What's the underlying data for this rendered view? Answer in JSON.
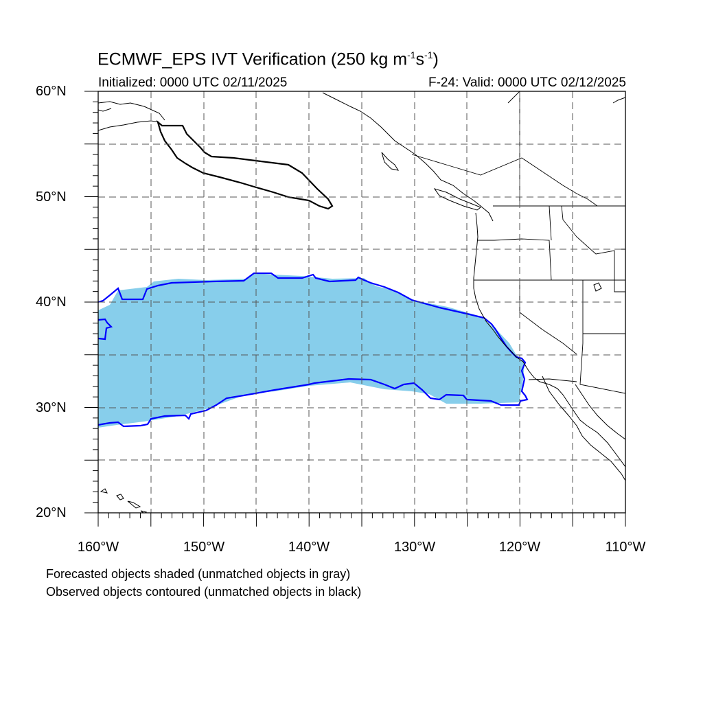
{
  "title": {
    "main": "ECMWF_EPS IVT Verification (250 kg m",
    "sup1": "-1",
    "mid": "s",
    "sup2": "-1",
    "end": ")"
  },
  "subtitle_left": "Initialized: 0000 UTC 02/11/2025",
  "subtitle_right": "F-24: Valid: 0000 UTC 02/12/2025",
  "lat_labels": [
    "60°N",
    "50°N",
    "40°N",
    "30°N",
    "20°N"
  ],
  "lon_labels": [
    "160°W",
    "150°W",
    "140°W",
    "130°W",
    "120°W",
    "110°W"
  ],
  "notes": [
    "Forecasted objects shaded (unmatched objects in gray)",
    "Observed objects contoured (unmatched objects in black)"
  ],
  "colors": {
    "forecast_fill": "#87CEEB",
    "observed_matched": "#0000FF",
    "observed_unmatched": "#000000",
    "grid": "#555555"
  },
  "map": {
    "lon_range": [
      -160,
      -110
    ],
    "lat_range": [
      20,
      60
    ],
    "grid_step_degrees": 5
  }
}
